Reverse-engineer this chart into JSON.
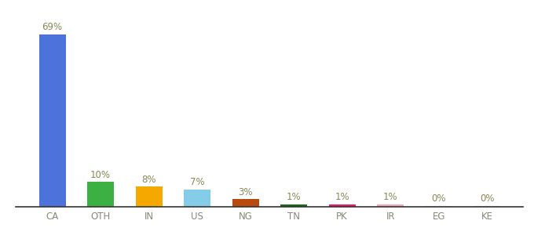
{
  "categories": [
    "CA",
    "OTH",
    "IN",
    "US",
    "NG",
    "TN",
    "PK",
    "IR",
    "EG",
    "KE"
  ],
  "values": [
    69,
    10,
    8,
    7,
    3,
    1,
    1,
    1,
    0.3,
    0.3
  ],
  "labels": [
    "69%",
    "10%",
    "8%",
    "7%",
    "3%",
    "1%",
    "1%",
    "1%",
    "0%",
    "0%"
  ],
  "bar_colors": [
    "#4d72d9",
    "#3cb043",
    "#f5a800",
    "#85cce8",
    "#b84a10",
    "#1a6b1a",
    "#e8196e",
    "#f0a8bb",
    "#d8d8d8",
    "#d8d8d8"
  ],
  "background_color": "#ffffff",
  "label_fontsize": 8.5,
  "tick_fontsize": 8.5,
  "ylim": [
    0,
    78
  ],
  "label_color": "#888855",
  "tick_color": "#888877"
}
